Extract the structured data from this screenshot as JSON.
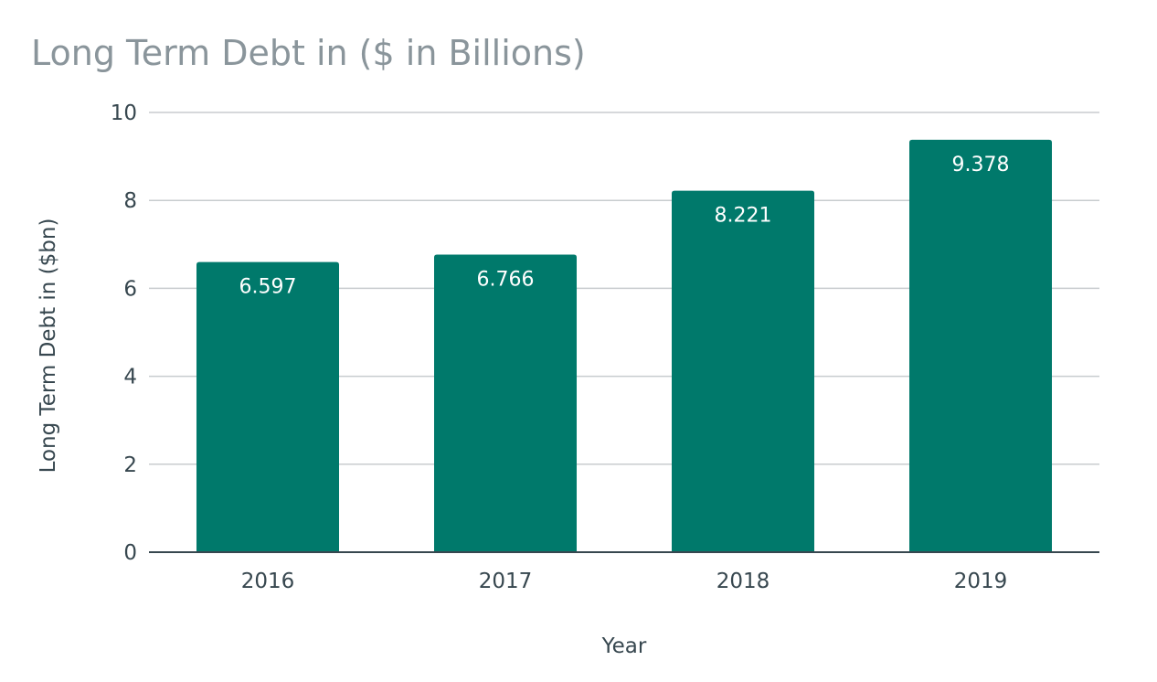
{
  "chart_data": {
    "type": "bar",
    "title": "Long Term Debt in ($ in Billions)",
    "xlabel": "Year",
    "ylabel": "Long Term Debt in ($bn)",
    "categories": [
      "2016",
      "2017",
      "2018",
      "2019"
    ],
    "values": [
      6.597,
      6.766,
      8.221,
      9.378
    ],
    "data_labels": [
      "6.597",
      "6.766",
      "8.221",
      "9.378"
    ],
    "ylim": [
      0,
      10
    ],
    "yticks": [
      0,
      2,
      4,
      6,
      8,
      10
    ],
    "grid": true,
    "legend": "none",
    "bar_color": "#00796b"
  }
}
